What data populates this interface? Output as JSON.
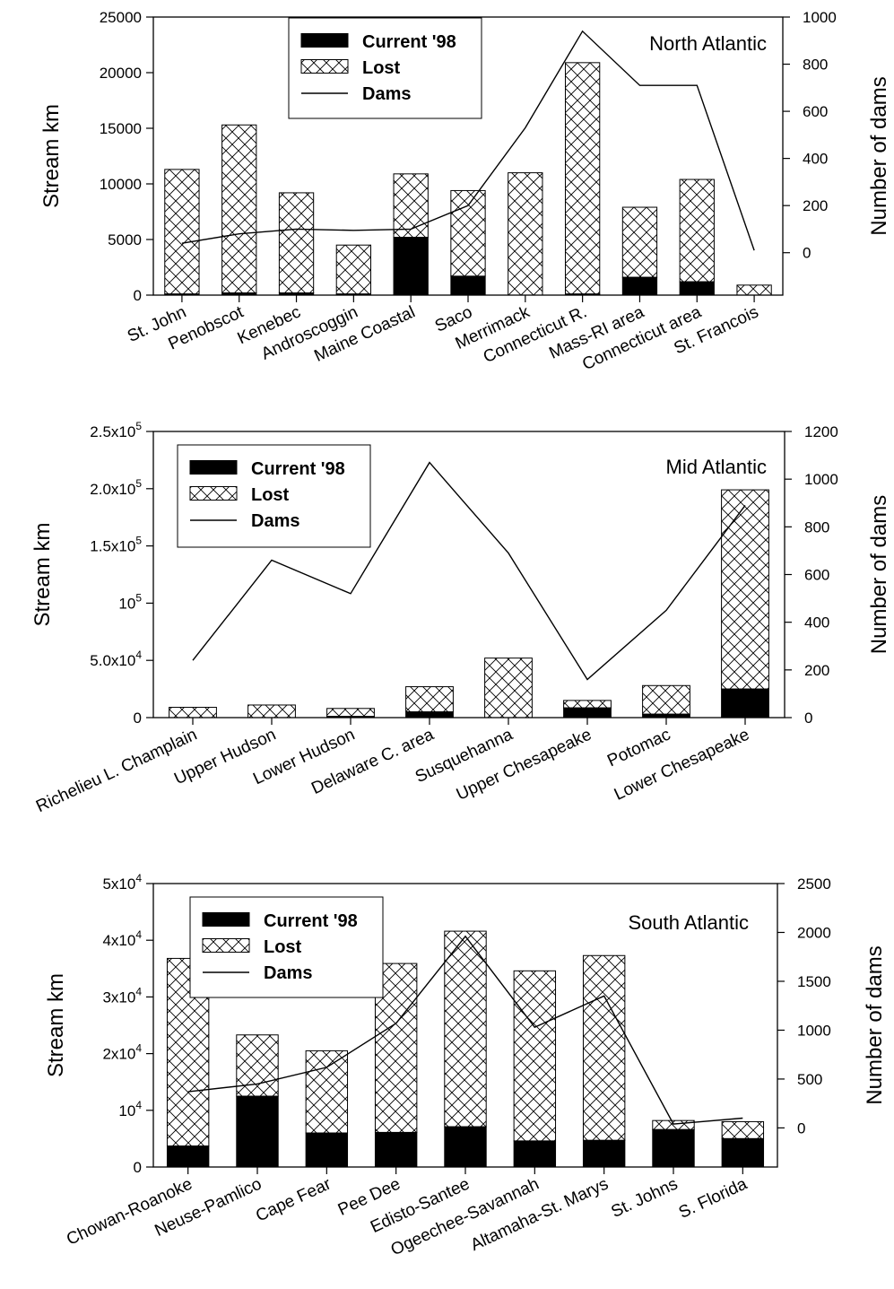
{
  "figure": {
    "series_labels": [
      "Current '98",
      "Lost",
      "Dams"
    ],
    "colors": {
      "current": "#000000",
      "lost_fill": "#ffffff",
      "lost_hatch": "#000000",
      "dams_line": "#000000"
    }
  },
  "chart_data": [
    {
      "type": "bar",
      "stacked": true,
      "region_label": "North Atlantic",
      "ylabel": "Stream km",
      "y2label": "Number of dams",
      "ylim": [
        0,
        25000
      ],
      "y2lim": [
        -180,
        1000
      ],
      "yticks": [
        0,
        5000,
        10000,
        15000,
        20000,
        25000
      ],
      "ytick_labels": [
        "0",
        "5000",
        "10000",
        "15000",
        "20000",
        "25000"
      ],
      "y2ticks": [
        0,
        200,
        400,
        600,
        800,
        1000
      ],
      "y2tick_labels": [
        "0",
        "200",
        "400",
        "600",
        "800",
        "1000"
      ],
      "legend_position": "top-left",
      "categories": [
        "St. John",
        "Penobscot",
        "Kenebec",
        "Androscoggin",
        "Maine Coastal",
        "Saco",
        "Merrimack",
        "Connecticut R.",
        "Mass-RI area",
        "Connecticut area",
        "St. Francois"
      ],
      "series": [
        {
          "name": "Current '98",
          "kind": "bar",
          "values": [
            100,
            200,
            200,
            100,
            5200,
            1700,
            0,
            100,
            1600,
            1200,
            0
          ]
        },
        {
          "name": "Lost",
          "kind": "bar",
          "values": [
            11200,
            15100,
            9000,
            4400,
            5700,
            7700,
            11000,
            20800,
            6300,
            9200,
            900
          ]
        },
        {
          "name": "Dams",
          "kind": "line",
          "axis": "right",
          "values": [
            40,
            80,
            100,
            95,
            100,
            200,
            530,
            940,
            710,
            710,
            10
          ]
        }
      ]
    },
    {
      "type": "bar",
      "stacked": true,
      "region_label": "Mid Atlantic",
      "ylabel": "Stream km",
      "y2label": "Number of dams",
      "ylim": [
        0,
        250000
      ],
      "y2lim": [
        0,
        1200
      ],
      "yticks": [
        0,
        50000,
        100000,
        150000,
        200000,
        250000
      ],
      "ytick_labels": [
        "0",
        "5.0x10^4",
        "10^5",
        "1.5x10^5",
        "2.0x10^5",
        "2.5x10^5"
      ],
      "y2ticks": [
        0,
        200,
        400,
        600,
        800,
        1000,
        1200
      ],
      "y2tick_labels": [
        "0",
        "200",
        "400",
        "600",
        "800",
        "1000",
        "1200"
      ],
      "legend_position": "top-left",
      "categories": [
        "Richelieu L. Champlain",
        "Upper Hudson",
        "Lower Hudson",
        "Delaware C. area",
        "Susquehanna",
        "Upper Chesapeake",
        "Potomac",
        "Lower Chesapeake"
      ],
      "series": [
        {
          "name": "Current '98",
          "kind": "bar",
          "values": [
            0,
            0,
            1000,
            5000,
            0,
            8500,
            3000,
            25000
          ]
        },
        {
          "name": "Lost",
          "kind": "bar",
          "values": [
            9000,
            11000,
            7000,
            22000,
            52000,
            6500,
            25000,
            174000
          ]
        },
        {
          "name": "Dams",
          "kind": "line",
          "axis": "right",
          "values": [
            240,
            660,
            520,
            1070,
            690,
            160,
            450,
            890
          ]
        }
      ]
    },
    {
      "type": "bar",
      "stacked": true,
      "region_label": "South Atlantic",
      "ylabel": "Stream km",
      "y2label": "Number of dams",
      "ylim": [
        0,
        50000
      ],
      "y2lim": [
        -400,
        2500
      ],
      "yticks": [
        0,
        10000,
        20000,
        30000,
        40000,
        50000
      ],
      "ytick_labels": [
        "0",
        "10^4",
        "2x10^4",
        "3x10^4",
        "4x10^4",
        "5x10^4"
      ],
      "y2ticks": [
        0,
        500,
        1000,
        1500,
        2000,
        2500
      ],
      "y2tick_labels": [
        "0",
        "500",
        "1000",
        "1500",
        "2000",
        "2500"
      ],
      "legend_position": "top-left",
      "categories": [
        "Chowan-Roanoke",
        "Neuse-Pamlico",
        "Cape Fear",
        "Pee Dee",
        "Edisto-Santee",
        "Ogeechee-Savannah",
        "Altamaha-St. Marys",
        "St. Johns",
        "S. Florida"
      ],
      "series": [
        {
          "name": "Current '98",
          "kind": "bar",
          "values": [
            3700,
            12500,
            6000,
            6100,
            7100,
            4600,
            4700,
            6600,
            5000
          ]
        },
        {
          "name": "Lost",
          "kind": "bar",
          "values": [
            33100,
            10800,
            14500,
            29800,
            34500,
            30000,
            32600,
            1600,
            3000
          ]
        },
        {
          "name": "Dams",
          "kind": "line",
          "axis": "right",
          "values": [
            370,
            450,
            620,
            1070,
            1960,
            1030,
            1350,
            40,
            100
          ]
        }
      ]
    }
  ]
}
